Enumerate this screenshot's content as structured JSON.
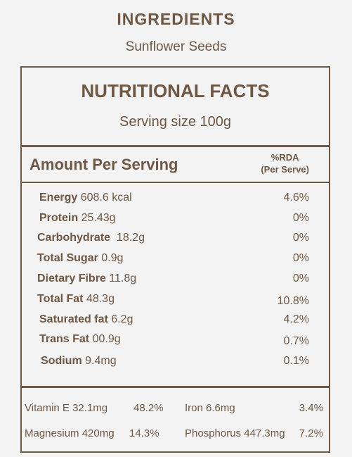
{
  "ingredients": {
    "title": "INGREDIENTS",
    "value": "Sunflower Seeds"
  },
  "facts": {
    "title": "NUTRITIONAL FACTS",
    "serving": "Serving size 100g",
    "amount_header": "Amount Per Serving",
    "rda_line1": "%RDA",
    "rda_line2": "(Per Serve)"
  },
  "nutrients": [
    {
      "name": "Energy",
      "amount": "608.6 kcal",
      "rda": "4.6%"
    },
    {
      "name": "Protein",
      "amount": "25.43g",
      "rda": "0%"
    },
    {
      "name": "Carbohydrate",
      "amount": "18.2g",
      "rda": "0%"
    },
    {
      "name": "Total Sugar",
      "amount": "0.9g",
      "rda": "0%"
    },
    {
      "name": "Dietary Fibre",
      "amount": "11.8g",
      "rda": "0%"
    },
    {
      "name": "Total Fat",
      "amount": "48.3g",
      "rda": "10.8%"
    },
    {
      "name": "Saturated fat",
      "amount": "6.2g",
      "rda": "4.2%"
    },
    {
      "name": "Trans Fat",
      "amount": "00.9g",
      "rda": "0.7%"
    },
    {
      "name": "Sodium",
      "amount": "9.4mg",
      "rda": "0.1%"
    }
  ],
  "vitamins": [
    {
      "label": "Vitamin E 32.1mg",
      "rda": "48.2%"
    },
    {
      "label": "Iron 6.6mg",
      "rda": "3.4%"
    },
    {
      "label": "Magnesium 420mg",
      "rda": "14.3%"
    },
    {
      "label": "Phosphorus 447.3mg",
      "rda": "7.2%"
    }
  ]
}
